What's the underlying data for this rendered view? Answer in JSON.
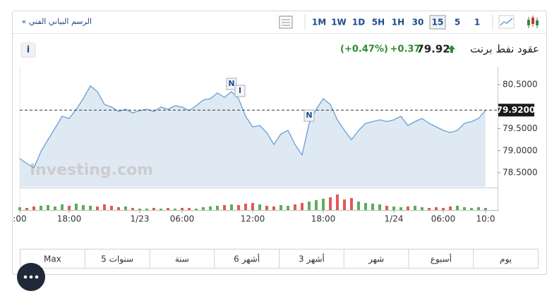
{
  "header": {
    "link": "الرسم البياني الفني »",
    "intervals": [
      "1M",
      "1W",
      "1D",
      "5H",
      "1H",
      "30",
      "15",
      "5",
      "1"
    ],
    "selected_interval": "15"
  },
  "quote": {
    "name": "عقود نفط برنت",
    "price": 79.92,
    "change": "+0.37",
    "change_percent": "(+0.47%)",
    "info": "i"
  },
  "chart_data": {
    "type": "area",
    "watermark": "Investing.com",
    "categories": [
      ":00",
      null,
      null,
      null,
      null,
      null,
      null,
      "18:00",
      null,
      null,
      null,
      null,
      null,
      null,
      null,
      null,
      null,
      "1/23",
      null,
      null,
      null,
      null,
      null,
      "06:00",
      null,
      null,
      null,
      null,
      null,
      null,
      null,
      null,
      null,
      "12:00",
      null,
      null,
      null,
      null,
      null,
      null,
      null,
      null,
      null,
      "18:00",
      null,
      null,
      null,
      null,
      null,
      null,
      null,
      null,
      null,
      "1/24",
      null,
      null,
      null,
      null,
      null,
      null,
      "06:00",
      null,
      null,
      null,
      null,
      null,
      "10:0"
    ],
    "values": [
      78.82,
      78.71,
      78.61,
      78.98,
      79.25,
      79.51,
      79.78,
      79.73,
      79.94,
      80.18,
      80.47,
      80.34,
      80.05,
      79.99,
      79.89,
      79.94,
      79.86,
      79.91,
      79.94,
      79.89,
      79.99,
      79.94,
      80.02,
      79.99,
      79.91,
      80.02,
      80.15,
      80.18,
      80.31,
      80.21,
      80.34,
      80.18,
      79.78,
      79.54,
      79.57,
      79.41,
      79.14,
      79.38,
      79.46,
      79.14,
      78.9,
      79.62,
      79.94,
      80.18,
      80.05,
      79.7,
      79.46,
      79.25,
      79.46,
      79.62,
      79.66,
      79.7,
      79.66,
      79.7,
      79.78,
      79.57,
      79.66,
      79.73,
      79.62,
      79.54,
      79.46,
      79.41,
      79.46,
      79.62,
      79.66,
      79.73,
      79.92
    ],
    "color": "#6a9fd4",
    "fill": "#dfe9f4",
    "last_value": {
      "value": 79.92,
      "label": "79.9200"
    },
    "ylim": [
      78.18,
      80.9
    ],
    "yticks": [
      {
        "value": 80.5,
        "label": "80.5000"
      },
      {
        "value": 79.5,
        "label": "79.5000"
      },
      {
        "value": 79.0,
        "label": "79.0000"
      },
      {
        "value": 78.5,
        "label": "78.5000"
      }
    ],
    "volume": [
      4,
      3,
      5,
      6,
      7,
      5,
      8,
      6,
      9,
      7,
      6,
      5,
      8,
      6,
      4,
      5,
      3,
      2,
      2,
      3,
      2,
      3,
      2,
      3,
      3,
      2,
      4,
      5,
      6,
      7,
      8,
      7,
      9,
      10,
      8,
      6,
      5,
      7,
      6,
      8,
      10,
      12,
      14,
      16,
      18,
      22,
      15,
      17,
      12,
      10,
      9,
      8,
      6,
      5,
      4,
      5,
      6,
      4,
      3,
      4,
      3,
      5,
      6,
      4,
      3,
      4,
      3
    ],
    "volume_colors": {
      "up": "#5cae5c",
      "down": "#e05a5a"
    },
    "annotations": [
      {
        "label": "N",
        "at": 30
      },
      {
        "label": "I",
        "at": 31
      },
      {
        "label": "N",
        "at": 41
      }
    ]
  },
  "ranges": [
    "يوم",
    "أسبوع",
    "شهر",
    "3 أشهر",
    "6 أشهر",
    "سنة",
    "5 سنوات",
    "Max"
  ]
}
